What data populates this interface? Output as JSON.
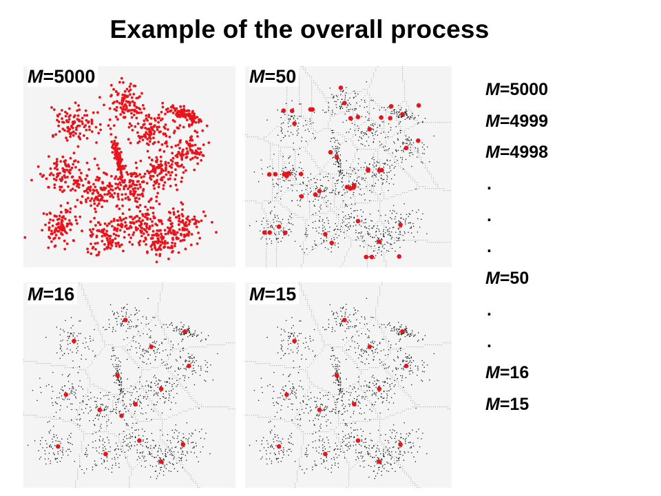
{
  "title": "Example of the overall process",
  "panels": [
    {
      "id": "m5000",
      "label_var": "M",
      "label_value": "=5000",
      "type": "raw"
    },
    {
      "id": "m50",
      "label_var": "M",
      "label_value": "=50",
      "type": "voronoi",
      "centers": 50
    },
    {
      "id": "m16",
      "label_var": "M",
      "label_value": "=16",
      "type": "voronoi",
      "centers": 16
    },
    {
      "id": "m15",
      "label_var": "M",
      "label_value": "=15",
      "type": "voronoi",
      "centers": 15
    }
  ],
  "sequence": [
    {
      "var": "M",
      "value": "=5000"
    },
    {
      "var": "M",
      "value": "=4999"
    },
    {
      "var": "M",
      "value": "=4998"
    },
    {
      "dot": "."
    },
    {
      "dot": "."
    },
    {
      "dot": "."
    },
    {
      "var": "M",
      "value": "=50"
    },
    {
      "dot": "."
    },
    {
      "dot": "."
    },
    {
      "var": "M",
      "value": "=16"
    },
    {
      "var": "M",
      "value": "=15"
    }
  ],
  "colors": {
    "point_raw": "#e8141c",
    "center": "#e8141c",
    "point_small": "#111111",
    "voronoi_edge": "#b5b5b5",
    "panel_bg": "#f4f4f4"
  }
}
